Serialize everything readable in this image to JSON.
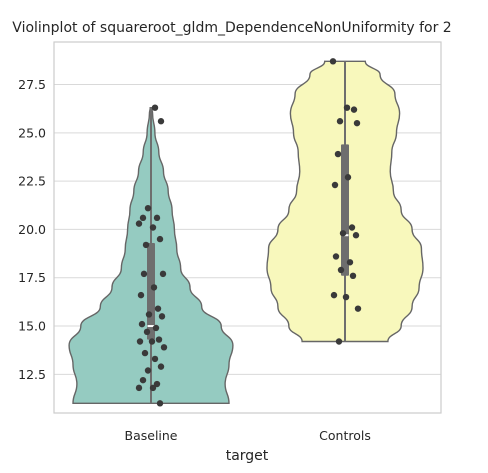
{
  "chart_data": {
    "type": "violin",
    "title": "Violinplot of squareroot_gldm_DependenceNonUniformity for 2",
    "xlabel": "target",
    "ylabel": "",
    "categories": [
      "Baseline",
      "Controls"
    ],
    "ylim": [
      10.5,
      29.7
    ],
    "yticks": [
      12.5,
      15.0,
      17.5,
      20.0,
      22.5,
      25.0,
      27.5
    ],
    "ytick_labels": [
      "12.5",
      "15.0",
      "17.5",
      "20.0",
      "22.5",
      "25.0",
      "27.5"
    ],
    "grid": true,
    "colors": {
      "Baseline": "#95cbc1",
      "Controls": "#f8f8bc",
      "violin_edge": "#666666",
      "box": "#6e6e6e",
      "median": "#ffffff",
      "point": "#3a3a3a",
      "grid": "#d9d9d9",
      "frame": "#cccccc"
    },
    "series": [
      {
        "name": "Baseline",
        "min": 11.0,
        "q1": 14.3,
        "median": 15.0,
        "q3": 19.3,
        "max": 26.3,
        "violin_profile": [
          [
            11.0,
            1.0
          ],
          [
            12.0,
            0.95
          ],
          [
            13.0,
            1.0
          ],
          [
            14.0,
            1.05
          ],
          [
            15.0,
            0.9
          ],
          [
            16.0,
            0.65
          ],
          [
            17.0,
            0.5
          ],
          [
            18.0,
            0.38
          ],
          [
            19.0,
            0.33
          ],
          [
            20.0,
            0.3
          ],
          [
            21.0,
            0.27
          ],
          [
            22.0,
            0.22
          ],
          [
            23.0,
            0.16
          ],
          [
            24.0,
            0.1
          ],
          [
            25.0,
            0.05
          ],
          [
            26.0,
            0.02
          ],
          [
            26.3,
            0.01
          ]
        ],
        "points": [
          26.3,
          25.6,
          21.1,
          20.6,
          20.6,
          20.3,
          20.1,
          19.5,
          19.2,
          17.7,
          17.7,
          17.0,
          16.6,
          15.9,
          15.6,
          15.5,
          15.1,
          14.9,
          14.7,
          14.3,
          14.2,
          14.2,
          13.9,
          13.6,
          13.3,
          12.9,
          12.7,
          12.2,
          12.0,
          11.8,
          11.8,
          11.0
        ]
      },
      {
        "name": "Controls",
        "min": 14.2,
        "q1": 17.6,
        "median": 19.7,
        "q3": 24.4,
        "max": 28.7,
        "violin_profile": [
          [
            14.2,
            0.55
          ],
          [
            15.0,
            0.72
          ],
          [
            16.0,
            0.86
          ],
          [
            17.0,
            0.95
          ],
          [
            18.0,
            1.0
          ],
          [
            19.0,
            0.98
          ],
          [
            20.0,
            0.86
          ],
          [
            21.0,
            0.72
          ],
          [
            22.0,
            0.62
          ],
          [
            23.0,
            0.58
          ],
          [
            24.0,
            0.6
          ],
          [
            25.0,
            0.66
          ],
          [
            26.0,
            0.7
          ],
          [
            27.0,
            0.64
          ],
          [
            28.0,
            0.45
          ],
          [
            28.7,
            0.26
          ]
        ],
        "points": [
          28.7,
          26.3,
          26.2,
          25.6,
          25.5,
          23.9,
          22.7,
          22.3,
          20.1,
          19.8,
          19.7,
          18.6,
          18.3,
          17.9,
          17.6,
          16.6,
          16.5,
          15.9,
          14.2
        ]
      }
    ]
  }
}
